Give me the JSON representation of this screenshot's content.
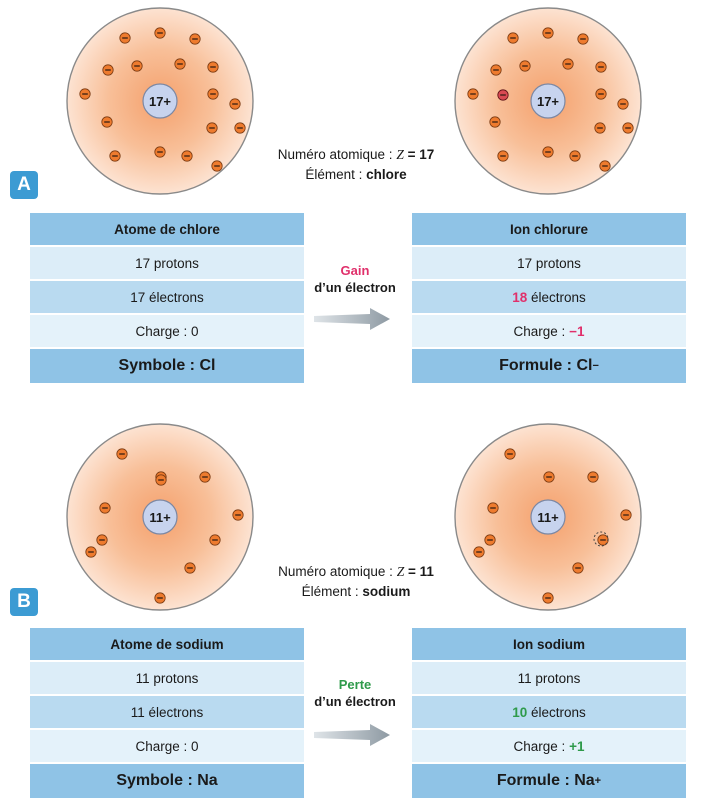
{
  "sectionA": {
    "badge": "A",
    "atom_left": {
      "nucleus": "17+"
    },
    "atom_right": {
      "nucleus": "17+"
    },
    "info": {
      "z_label": "Numéro atomique : ",
      "z_symbol": "Z",
      "z_value": " = 17",
      "element_label": "Élément : ",
      "element_name": "chlore"
    },
    "left_table": {
      "header": "Atome de chlore",
      "protons": "17 protons",
      "electrons": "17 électrons",
      "charge": "Charge : 0",
      "footer": "Symbole : Cl"
    },
    "transfer": {
      "line1": "Gain",
      "line2": "d’un électron"
    },
    "right_table": {
      "header": "Ion chlorure",
      "protons": "17 protons",
      "electrons_value": "18",
      "electrons_suffix": " électrons",
      "charge_label": "Charge : ",
      "charge_value": "−1",
      "footer_base": "Formule : Cl",
      "footer_sup": "−"
    }
  },
  "sectionB": {
    "badge": "B",
    "atom_left": {
      "nucleus": "11+"
    },
    "atom_right": {
      "nucleus": "11+"
    },
    "info": {
      "z_label": "Numéro atomique : ",
      "z_symbol": "Z",
      "z_value": " = 11",
      "element_label": "Élément : ",
      "element_name": "sodium"
    },
    "left_table": {
      "header": "Atome de sodium",
      "protons": "11 protons",
      "electrons": "11 électrons",
      "charge": "Charge : 0",
      "footer": "Symbole : Na"
    },
    "transfer": {
      "line1": "Perte",
      "line2": "d’un électron"
    },
    "right_table": {
      "header": "Ion sodium",
      "protons": "11 protons",
      "electrons_value": "10",
      "electrons_suffix": " électrons",
      "charge_label": "Charge : ",
      "charge_value": "+1",
      "footer_base": "Formule : Na",
      "footer_sup": "+"
    }
  },
  "electron_sign": "−",
  "colors": {
    "atom_core": "#f7a878",
    "atom_edge": "#fde2cf",
    "nucleus_fill": "#c7d3ee",
    "electron_fill": "#ee7b2e",
    "badge": "#3c9bd3",
    "gain": "#e0306b",
    "loss": "#2e9a4a",
    "header_row": "#8fc3e6"
  }
}
